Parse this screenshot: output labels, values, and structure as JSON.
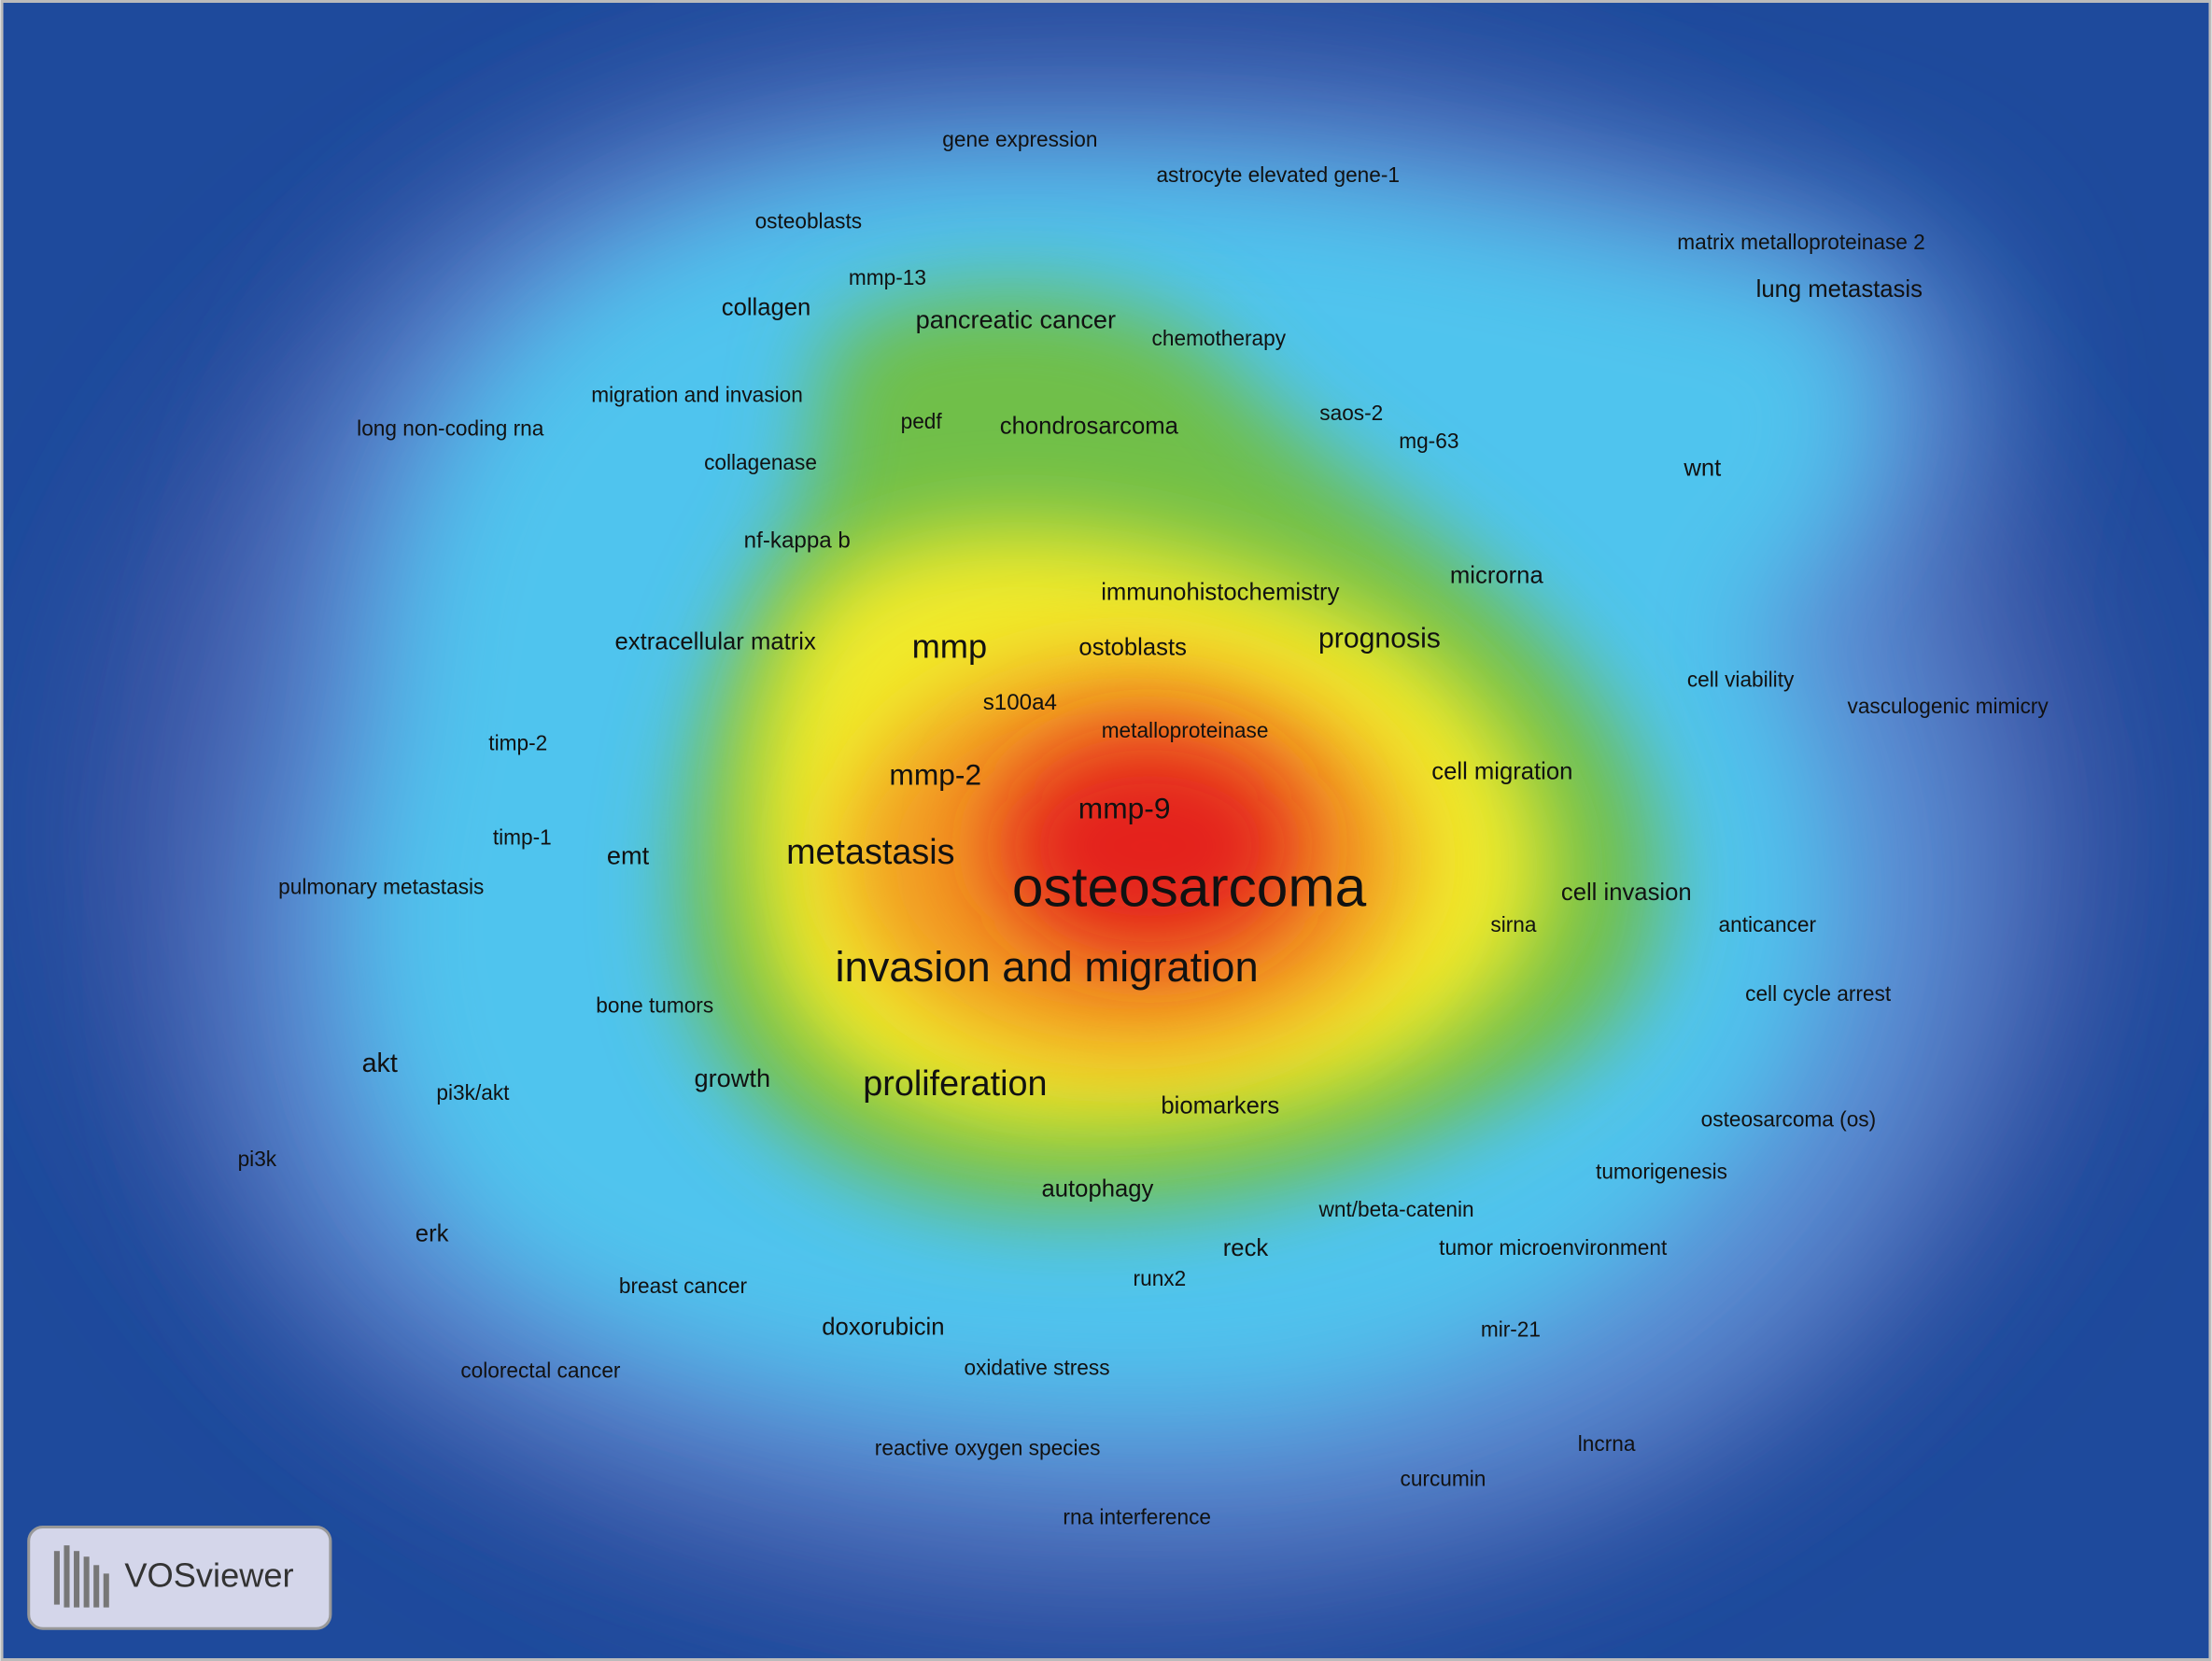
{
  "keywords": [
    "gene expression",
    "astrocyte elevated gene-1",
    "osteoblasts",
    "matrix metalloproteinase 2",
    "mmp-13",
    "lung metastasis",
    "collagen",
    "pancreatic cancer",
    "chemotherapy",
    "migration and invasion",
    "long non-coding rna",
    "pedf",
    "chondrosarcoma",
    "saos-2",
    "mg-63",
    "collagenase",
    "wnt",
    "nf-kappa b",
    "microrna",
    "immunohistochemistry",
    "extracellular matrix",
    "mmp",
    "ostoblasts",
    "prognosis",
    "cell viability",
    "vasculogenic mimicry",
    "s100a4",
    "metalloproteinase",
    "timp-2",
    "cell migration",
    "mmp-2",
    "mmp-9",
    "timp-1",
    "emt",
    "metastasis",
    "osteosarcoma",
    "pulmonary metastasis",
    "cell invasion",
    "sirna",
    "anticancer",
    "invasion and migration",
    "cell cycle arrest",
    "bone tumors",
    "akt",
    "pi3k/akt",
    "growth",
    "proliferation",
    "biomarkers",
    "osteosarcoma (os)",
    "pi3k",
    "tumorigenesis",
    "autophagy",
    "wnt/beta-catenin",
    "erk",
    "reck",
    "tumor microenvironment",
    "breast cancer",
    "runx2",
    "doxorubicin",
    "mir-21",
    "oxidative stress",
    "colorectal cancer",
    "reactive oxygen species",
    "lncrna",
    "curcumin",
    "rna interference"
  ],
  "logo": "VOSviewer"
}
